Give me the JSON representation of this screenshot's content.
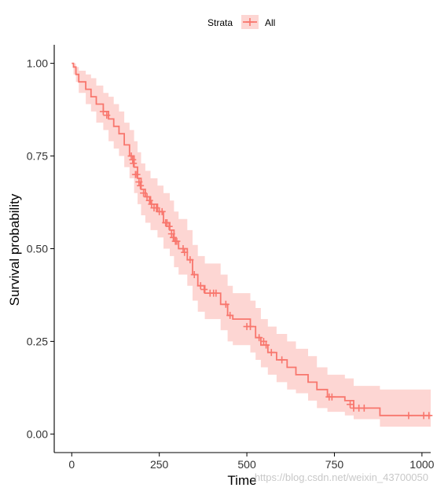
{
  "chart_data": {
    "type": "line",
    "subtype": "kaplan-meier survival curve with confidence band",
    "xlabel": "Time",
    "ylabel": "Survival probability",
    "xlim": [
      -50,
      1025
    ],
    "ylim": [
      -0.05,
      1.05
    ],
    "x_ticks": [
      0,
      250,
      500,
      750,
      1000
    ],
    "y_ticks": [
      0.0,
      0.25,
      0.5,
      0.75,
      1.0
    ],
    "x_tick_labels": [
      "0",
      "250",
      "500",
      "750",
      "1000"
    ],
    "y_tick_labels": [
      "0.00",
      "0.25",
      "0.50",
      "0.75",
      "1.00"
    ],
    "grid": false,
    "legend": {
      "title": "Strata",
      "position": "top",
      "entries": [
        "All"
      ]
    },
    "colors": {
      "line": "#F8766D",
      "band": "#F8766D"
    },
    "series": [
      {
        "name": "All",
        "steps": [
          [
            0,
            1.0
          ],
          [
            5,
            0.99
          ],
          [
            12,
            0.97
          ],
          [
            20,
            0.95
          ],
          [
            40,
            0.93
          ],
          [
            55,
            0.91
          ],
          [
            70,
            0.89
          ],
          [
            90,
            0.87
          ],
          [
            105,
            0.85
          ],
          [
            120,
            0.83
          ],
          [
            135,
            0.81
          ],
          [
            150,
            0.78
          ],
          [
            165,
            0.75
          ],
          [
            178,
            0.72
          ],
          [
            188,
            0.69
          ],
          [
            198,
            0.66
          ],
          [
            210,
            0.64
          ],
          [
            225,
            0.62
          ],
          [
            245,
            0.6
          ],
          [
            262,
            0.57
          ],
          [
            280,
            0.55
          ],
          [
            292,
            0.52
          ],
          [
            305,
            0.5
          ],
          [
            330,
            0.47
          ],
          [
            345,
            0.43
          ],
          [
            360,
            0.4
          ],
          [
            380,
            0.38
          ],
          [
            425,
            0.35
          ],
          [
            445,
            0.32
          ],
          [
            460,
            0.31
          ],
          [
            510,
            0.29
          ],
          [
            525,
            0.26
          ],
          [
            540,
            0.24
          ],
          [
            560,
            0.22
          ],
          [
            585,
            0.2
          ],
          [
            615,
            0.18
          ],
          [
            640,
            0.16
          ],
          [
            675,
            0.14
          ],
          [
            700,
            0.12
          ],
          [
            730,
            0.1
          ],
          [
            780,
            0.09
          ],
          [
            805,
            0.07
          ],
          [
            880,
            0.05
          ],
          [
            1025,
            0.05
          ]
        ],
        "upper": [
          [
            0,
            1.0
          ],
          [
            5,
            1.0
          ],
          [
            12,
            0.99
          ],
          [
            20,
            0.98
          ],
          [
            40,
            0.97
          ],
          [
            55,
            0.96
          ],
          [
            70,
            0.94
          ],
          [
            90,
            0.92
          ],
          [
            105,
            0.91
          ],
          [
            120,
            0.89
          ],
          [
            135,
            0.87
          ],
          [
            150,
            0.84
          ],
          [
            165,
            0.82
          ],
          [
            178,
            0.79
          ],
          [
            188,
            0.76
          ],
          [
            198,
            0.73
          ],
          [
            210,
            0.71
          ],
          [
            225,
            0.69
          ],
          [
            245,
            0.67
          ],
          [
            262,
            0.65
          ],
          [
            280,
            0.63
          ],
          [
            292,
            0.6
          ],
          [
            305,
            0.58
          ],
          [
            330,
            0.55
          ],
          [
            345,
            0.51
          ],
          [
            360,
            0.48
          ],
          [
            380,
            0.46
          ],
          [
            425,
            0.43
          ],
          [
            445,
            0.4
          ],
          [
            460,
            0.38
          ],
          [
            510,
            0.36
          ],
          [
            525,
            0.34
          ],
          [
            540,
            0.31
          ],
          [
            560,
            0.29
          ],
          [
            585,
            0.27
          ],
          [
            615,
            0.25
          ],
          [
            640,
            0.23
          ],
          [
            675,
            0.21
          ],
          [
            700,
            0.18
          ],
          [
            730,
            0.16
          ],
          [
            780,
            0.15
          ],
          [
            805,
            0.13
          ],
          [
            880,
            0.12
          ],
          [
            1025,
            0.12
          ]
        ],
        "lower": [
          [
            0,
            1.0
          ],
          [
            5,
            0.97
          ],
          [
            12,
            0.95
          ],
          [
            20,
            0.92
          ],
          [
            40,
            0.89
          ],
          [
            55,
            0.87
          ],
          [
            70,
            0.84
          ],
          [
            90,
            0.82
          ],
          [
            105,
            0.79
          ],
          [
            120,
            0.77
          ],
          [
            135,
            0.75
          ],
          [
            150,
            0.72
          ],
          [
            165,
            0.69
          ],
          [
            178,
            0.65
          ],
          [
            188,
            0.62
          ],
          [
            198,
            0.59
          ],
          [
            210,
            0.57
          ],
          [
            225,
            0.55
          ],
          [
            245,
            0.53
          ],
          [
            262,
            0.5
          ],
          [
            280,
            0.48
          ],
          [
            292,
            0.45
          ],
          [
            305,
            0.43
          ],
          [
            330,
            0.4
          ],
          [
            345,
            0.36
          ],
          [
            360,
            0.33
          ],
          [
            380,
            0.31
          ],
          [
            425,
            0.28
          ],
          [
            445,
            0.25
          ],
          [
            460,
            0.24
          ],
          [
            510,
            0.22
          ],
          [
            525,
            0.2
          ],
          [
            540,
            0.18
          ],
          [
            560,
            0.16
          ],
          [
            585,
            0.14
          ],
          [
            615,
            0.12
          ],
          [
            640,
            0.11
          ],
          [
            675,
            0.09
          ],
          [
            700,
            0.07
          ],
          [
            730,
            0.06
          ],
          [
            780,
            0.05
          ],
          [
            805,
            0.04
          ],
          [
            880,
            0.02
          ],
          [
            1025,
            0.02
          ]
        ],
        "censored": [
          [
            90,
            0.87
          ],
          [
            100,
            0.86
          ],
          [
            170,
            0.75
          ],
          [
            174,
            0.74
          ],
          [
            176,
            0.73
          ],
          [
            182,
            0.7
          ],
          [
            186,
            0.7
          ],
          [
            192,
            0.68
          ],
          [
            196,
            0.67
          ],
          [
            205,
            0.65
          ],
          [
            215,
            0.64
          ],
          [
            222,
            0.63
          ],
          [
            228,
            0.62
          ],
          [
            235,
            0.61
          ],
          [
            242,
            0.61
          ],
          [
            250,
            0.6
          ],
          [
            258,
            0.6
          ],
          [
            268,
            0.57
          ],
          [
            272,
            0.57
          ],
          [
            278,
            0.56
          ],
          [
            285,
            0.54
          ],
          [
            290,
            0.53
          ],
          [
            296,
            0.52
          ],
          [
            300,
            0.52
          ],
          [
            318,
            0.5
          ],
          [
            322,
            0.49
          ],
          [
            338,
            0.47
          ],
          [
            350,
            0.43
          ],
          [
            368,
            0.4
          ],
          [
            378,
            0.39
          ],
          [
            395,
            0.38
          ],
          [
            405,
            0.38
          ],
          [
            412,
            0.38
          ],
          [
            440,
            0.35
          ],
          [
            452,
            0.32
          ],
          [
            500,
            0.29
          ],
          [
            510,
            0.29
          ],
          [
            535,
            0.26
          ],
          [
            548,
            0.25
          ],
          [
            555,
            0.24
          ],
          [
            570,
            0.22
          ],
          [
            600,
            0.2
          ],
          [
            735,
            0.1
          ],
          [
            743,
            0.1
          ],
          [
            795,
            0.08
          ],
          [
            805,
            0.07
          ],
          [
            820,
            0.07
          ],
          [
            835,
            0.07
          ],
          [
            962,
            0.05
          ],
          [
            1005,
            0.05
          ],
          [
            1020,
            0.05
          ]
        ]
      }
    ]
  },
  "watermark": "https://blog.csdn.net/weixin_43700050"
}
